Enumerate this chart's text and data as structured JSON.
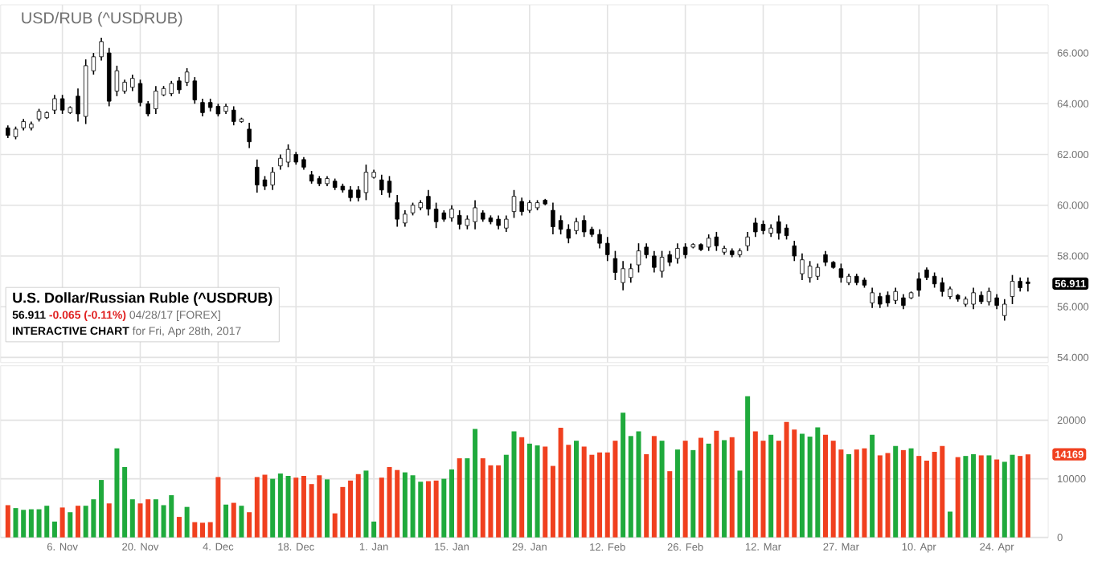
{
  "chart_data": [
    {
      "type": "candlestick",
      "title": "USD/RUB (^USDRUB)",
      "color": "#000000",
      "grid": true,
      "tick_labels": "y",
      "categories": [
        null,
        null,
        null,
        null,
        null,
        null,
        null,
        null,
        null,
        null,
        null,
        null,
        null,
        null,
        null,
        null,
        null,
        null,
        null,
        null,
        null,
        null,
        null,
        null,
        null,
        null,
        null,
        null,
        null,
        null,
        null,
        null,
        null,
        null,
        null,
        null,
        null,
        null,
        null,
        null,
        null,
        null,
        null,
        null,
        null,
        null,
        null,
        null,
        null,
        null,
        null,
        null,
        null,
        null,
        null,
        null,
        null,
        null,
        null,
        null,
        null,
        null,
        null,
        null,
        null,
        null,
        null,
        null,
        null,
        null,
        null,
        null,
        null,
        null,
        null,
        null,
        null,
        null,
        null,
        null,
        null,
        null,
        null,
        null,
        null,
        null,
        null,
        null,
        null,
        null,
        null,
        null,
        null,
        null,
        null,
        null,
        null,
        null,
        null,
        null,
        null,
        null,
        null,
        null,
        null,
        null,
        null,
        null,
        null,
        null,
        null,
        null,
        null,
        null,
        null,
        null,
        null,
        null,
        null,
        null,
        null,
        null,
        null,
        null,
        null,
        null,
        null,
        null,
        null,
        null,
        null,
        null
      ],
      "ylim": [
        53.8,
        67.9
      ],
      "yticks": [
        {
          "value": 54,
          "label": "54.000"
        },
        {
          "value": 56,
          "label": "56.000"
        },
        {
          "value": 58,
          "label": "58.000"
        },
        {
          "value": 60,
          "label": "60.000"
        },
        {
          "value": 62,
          "label": "62.000"
        },
        {
          "value": 64,
          "label": "64.000"
        },
        {
          "value": 66,
          "label": "66.000"
        }
      ],
      "ohlc": [
        [
          63.05,
          63.15,
          62.65,
          62.75
        ],
        [
          62.7,
          63.1,
          62.6,
          63.0
        ],
        [
          63.05,
          63.4,
          62.95,
          63.3
        ],
        [
          63.05,
          63.3,
          62.95,
          63.2
        ],
        [
          63.4,
          63.8,
          63.3,
          63.7
        ],
        [
          63.45,
          63.7,
          63.4,
          63.65
        ],
        [
          63.75,
          64.35,
          63.6,
          64.2
        ],
        [
          64.2,
          64.35,
          63.6,
          63.75
        ],
        [
          63.65,
          63.9,
          63.6,
          63.85
        ],
        [
          64.3,
          64.6,
          63.3,
          63.6
        ],
        [
          63.5,
          65.75,
          63.2,
          65.5
        ],
        [
          65.3,
          66.0,
          65.15,
          65.85
        ],
        [
          65.85,
          66.6,
          65.7,
          66.45
        ],
        [
          66.0,
          66.2,
          63.9,
          64.1
        ],
        [
          64.5,
          65.5,
          64.3,
          65.3
        ],
        [
          64.5,
          64.95,
          64.4,
          64.85
        ],
        [
          64.65,
          65.15,
          64.5,
          65.0
        ],
        [
          64.8,
          64.95,
          63.9,
          64.05
        ],
        [
          64.0,
          64.1,
          63.5,
          63.6
        ],
        [
          63.8,
          64.7,
          63.6,
          64.5
        ],
        [
          64.35,
          64.7,
          64.3,
          64.6
        ],
        [
          64.4,
          64.9,
          64.3,
          64.8
        ],
        [
          64.9,
          65.05,
          64.4,
          64.55
        ],
        [
          64.85,
          65.4,
          64.7,
          65.25
        ],
        [
          64.9,
          65.05,
          64.0,
          64.15
        ],
        [
          64.05,
          64.2,
          63.5,
          63.65
        ],
        [
          64.05,
          64.2,
          63.7,
          63.85
        ],
        [
          63.9,
          64.0,
          63.5,
          63.6
        ],
        [
          63.7,
          64.0,
          63.6,
          63.9
        ],
        [
          63.75,
          63.9,
          63.15,
          63.3
        ],
        [
          63.3,
          63.45,
          63.25,
          63.4
        ],
        [
          63.0,
          63.25,
          62.25,
          62.5
        ],
        [
          61.5,
          61.8,
          60.5,
          60.8
        ],
        [
          61.0,
          61.15,
          60.6,
          60.75
        ],
        [
          60.8,
          61.5,
          60.6,
          61.3
        ],
        [
          61.55,
          62.0,
          61.4,
          61.85
        ],
        [
          61.7,
          62.4,
          61.5,
          62.2
        ],
        [
          62.0,
          62.1,
          61.6,
          61.7
        ],
        [
          61.8,
          61.9,
          61.4,
          61.5
        ],
        [
          61.2,
          61.35,
          60.85,
          60.95
        ],
        [
          61.05,
          61.15,
          60.75,
          60.85
        ],
        [
          60.85,
          61.15,
          60.75,
          61.05
        ],
        [
          60.95,
          61.05,
          60.6,
          60.7
        ],
        [
          60.75,
          60.85,
          60.5,
          60.6
        ],
        [
          60.6,
          60.75,
          60.15,
          60.3
        ],
        [
          60.6,
          60.75,
          60.15,
          60.3
        ],
        [
          60.5,
          61.6,
          60.2,
          61.3
        ],
        [
          61.1,
          61.4,
          61.05,
          61.3
        ],
        [
          61.0,
          61.2,
          60.4,
          60.6
        ],
        [
          60.95,
          61.15,
          60.3,
          60.5
        ],
        [
          60.1,
          60.4,
          59.15,
          59.45
        ],
        [
          59.3,
          59.8,
          59.15,
          59.65
        ],
        [
          59.7,
          60.1,
          59.6,
          60.0
        ],
        [
          59.9,
          60.2,
          59.8,
          60.1
        ],
        [
          60.35,
          60.6,
          59.6,
          59.85
        ],
        [
          59.85,
          60.1,
          59.1,
          59.35
        ],
        [
          59.7,
          59.8,
          59.35,
          59.45
        ],
        [
          59.5,
          60.0,
          59.35,
          59.85
        ],
        [
          59.6,
          59.8,
          59.05,
          59.25
        ],
        [
          59.2,
          59.6,
          59.05,
          59.45
        ],
        [
          59.35,
          60.2,
          59.05,
          59.9
        ],
        [
          59.7,
          59.8,
          59.35,
          59.45
        ],
        [
          59.5,
          59.6,
          59.25,
          59.35
        ],
        [
          59.45,
          59.6,
          59.05,
          59.2
        ],
        [
          59.1,
          59.6,
          58.95,
          59.45
        ],
        [
          59.75,
          60.6,
          59.5,
          60.35
        ],
        [
          60.15,
          60.3,
          59.6,
          59.75
        ],
        [
          59.8,
          60.2,
          59.7,
          60.1
        ],
        [
          59.9,
          60.2,
          59.8,
          60.1
        ],
        [
          60.2,
          60.25,
          60.0,
          60.05
        ],
        [
          59.8,
          60.1,
          58.85,
          59.15
        ],
        [
          59.4,
          59.6,
          58.85,
          59.05
        ],
        [
          59.05,
          59.25,
          58.5,
          58.7
        ],
        [
          59.0,
          59.5,
          58.85,
          59.35
        ],
        [
          59.4,
          59.6,
          58.75,
          58.95
        ],
        [
          59.05,
          59.15,
          58.75,
          58.85
        ],
        [
          58.85,
          59.05,
          58.3,
          58.5
        ],
        [
          58.5,
          58.75,
          57.8,
          58.05
        ],
        [
          57.9,
          58.2,
          57.05,
          57.35
        ],
        [
          56.95,
          57.8,
          56.65,
          57.5
        ],
        [
          57.15,
          57.7,
          56.95,
          57.5
        ],
        [
          57.65,
          58.5,
          57.35,
          58.2
        ],
        [
          58.35,
          58.5,
          57.9,
          58.05
        ],
        [
          58.0,
          58.2,
          57.35,
          57.55
        ],
        [
          57.4,
          58.2,
          57.15,
          57.95
        ],
        [
          58.05,
          58.2,
          57.6,
          57.75
        ],
        [
          57.9,
          58.5,
          57.7,
          58.3
        ],
        [
          58.35,
          58.5,
          57.9,
          58.05
        ],
        [
          58.35,
          58.5,
          58.3,
          58.45
        ],
        [
          58.45,
          58.5,
          58.2,
          58.25
        ],
        [
          58.35,
          58.85,
          58.2,
          58.7
        ],
        [
          58.75,
          58.95,
          58.2,
          58.4
        ],
        [
          58.15,
          58.4,
          58.05,
          58.3
        ],
        [
          58.2,
          58.3,
          57.95,
          58.05
        ],
        [
          58.05,
          58.3,
          57.95,
          58.2
        ],
        [
          58.4,
          58.95,
          58.2,
          58.75
        ],
        [
          59.3,
          59.5,
          58.75,
          58.95
        ],
        [
          59.25,
          59.4,
          58.85,
          59.0
        ],
        [
          58.9,
          59.25,
          58.75,
          59.1
        ],
        [
          59.35,
          59.6,
          58.65,
          58.9
        ],
        [
          59.1,
          59.25,
          58.65,
          58.8
        ],
        [
          58.4,
          58.6,
          57.8,
          58.0
        ],
        [
          57.3,
          58.1,
          57.05,
          57.85
        ],
        [
          57.15,
          57.8,
          56.95,
          57.6
        ],
        [
          57.2,
          57.7,
          57.05,
          57.55
        ],
        [
          58.05,
          58.2,
          57.6,
          57.75
        ],
        [
          57.75,
          57.8,
          57.5,
          57.55
        ],
        [
          57.5,
          57.7,
          56.95,
          57.15
        ],
        [
          56.95,
          57.3,
          56.85,
          57.2
        ],
        [
          57.2,
          57.3,
          56.85,
          56.95
        ],
        [
          57.05,
          57.15,
          56.75,
          56.85
        ],
        [
          56.15,
          56.75,
          55.95,
          56.55
        ],
        [
          56.4,
          56.55,
          55.95,
          56.1
        ],
        [
          56.45,
          56.6,
          56.0,
          56.15
        ],
        [
          56.25,
          56.75,
          56.1,
          56.6
        ],
        [
          56.35,
          56.5,
          55.9,
          56.05
        ],
        [
          56.35,
          56.6,
          56.3,
          56.55
        ],
        [
          57.1,
          57.35,
          56.4,
          56.65
        ],
        [
          57.45,
          57.55,
          57.05,
          57.15
        ],
        [
          57.2,
          57.35,
          56.75,
          56.9
        ],
        [
          56.95,
          57.15,
          56.4,
          56.6
        ],
        [
          56.4,
          56.8,
          56.3,
          56.7
        ],
        [
          56.45,
          56.5,
          56.2,
          56.3
        ],
        [
          56.1,
          56.4,
          56.0,
          56.3
        ],
        [
          56.1,
          56.75,
          55.9,
          56.55
        ],
        [
          56.45,
          56.6,
          56.1,
          56.2
        ],
        [
          56.2,
          56.75,
          56.05,
          56.6
        ],
        [
          56.35,
          56.5,
          55.9,
          56.05
        ],
        [
          55.65,
          56.3,
          55.45,
          56.1
        ],
        [
          56.4,
          57.25,
          56.1,
          57.0
        ],
        [
          57.0,
          57.15,
          56.6,
          56.75
        ],
        [
          56.976,
          57.15,
          56.6,
          56.911
        ]
      ],
      "annotations": [
        "U.S. Dollar/Russian Ruble (^USDRUB)",
        "56.911",
        "-0.065 (-0.11%)",
        "04/28/17 [FOREX]",
        "INTERACTIVE CHART",
        "for Fri, Apr 28th, 2017",
        {
          "text": "56.911",
          "y": 56.911
        }
      ]
    },
    {
      "type": "bar",
      "grid": true,
      "categories": [
        null,
        null,
        null,
        null,
        null,
        null,
        null,
        "6. Nov",
        null,
        null,
        null,
        null,
        null,
        null,
        null,
        null,
        null,
        "20. Nov",
        null,
        null,
        null,
        null,
        null,
        null,
        null,
        null,
        null,
        "4. Dec",
        null,
        null,
        null,
        null,
        null,
        null,
        null,
        null,
        null,
        "18. Dec",
        null,
        null,
        null,
        null,
        null,
        null,
        null,
        null,
        null,
        "1. Jan",
        null,
        null,
        null,
        null,
        null,
        null,
        null,
        null,
        null,
        "15. Jan",
        null,
        null,
        null,
        null,
        null,
        null,
        null,
        null,
        null,
        "29. Jan",
        null,
        null,
        null,
        null,
        null,
        null,
        null,
        null,
        null,
        "12. Feb",
        null,
        null,
        null,
        null,
        null,
        null,
        null,
        null,
        null,
        "26. Feb",
        null,
        null,
        null,
        null,
        null,
        null,
        null,
        null,
        null,
        "12. Mar",
        null,
        null,
        null,
        null,
        null,
        null,
        null,
        null,
        null,
        "27. Mar",
        null,
        null,
        null,
        null,
        null,
        null,
        null,
        null,
        null,
        "10. Apr",
        null,
        null,
        null,
        null,
        null,
        null,
        null,
        null,
        null,
        "24. Apr",
        null,
        null,
        null,
        null
      ],
      "ylim": [
        0,
        29300
      ],
      "yticks": [
        0,
        10000,
        20000
      ],
      "values": [
        5500,
        5000,
        4700,
        4800,
        4800,
        5400,
        2700,
        5100,
        4300,
        5400,
        5400,
        6500,
        9800,
        5800,
        15200,
        12000,
        6500,
        5800,
        6500,
        6500,
        5500,
        7200,
        3500,
        5200,
        2600,
        2500,
        2600,
        10300,
        5600,
        5900,
        5400,
        4300,
        10300,
        10700,
        10000,
        10900,
        10500,
        10200,
        10500,
        9100,
        10600,
        9900,
        4100,
        8600,
        9700,
        10800,
        11400,
        2700,
        10200,
        12000,
        11500,
        11100,
        10600,
        9500,
        9600,
        9700,
        10000,
        11600,
        13500,
        13500,
        18500,
        13500,
        12300,
        12300,
        14100,
        18100,
        17100,
        16000,
        15700,
        15500,
        12200,
        18700,
        15800,
        16500,
        15500,
        14100,
        14500,
        14500,
        16500,
        21300,
        17300,
        18100,
        14200,
        17300,
        16500,
        11300,
        15000,
        16500,
        14900,
        17000,
        16000,
        18200,
        16600,
        17100,
        11400,
        24100,
        18100,
        16500,
        17500,
        16500,
        19700,
        18400,
        17700,
        17200,
        18800,
        17500,
        16500,
        15000,
        14200,
        15000,
        15200,
        17500,
        14000,
        14400,
        15600,
        14900,
        15200,
        13900,
        13100,
        14600,
        15600,
        4400,
        13700,
        13900,
        14200,
        14000,
        14000,
        13300,
        12900,
        14100,
        13900,
        14169
      ],
      "colors": [
        "#f0401f",
        "#1faa3c",
        "#1faa3c",
        "#1faa3c",
        "#1faa3c",
        "#1faa3c",
        "#1faa3c",
        "#f0401f",
        "#1faa3c",
        "#f0401f",
        "#1faa3c",
        "#1faa3c",
        "#1faa3c",
        "#f0401f",
        "#1faa3c",
        "#1faa3c",
        "#1faa3c",
        "#f0401f",
        "#f0401f",
        "#1faa3c",
        "#1faa3c",
        "#1faa3c",
        "#f0401f",
        "#1faa3c",
        "#f0401f",
        "#f0401f",
        "#f0401f",
        "#f0401f",
        "#1faa3c",
        "#f0401f",
        "#1faa3c",
        "#f0401f",
        "#f0401f",
        "#f0401f",
        "#1faa3c",
        "#1faa3c",
        "#1faa3c",
        "#f0401f",
        "#f0401f",
        "#f0401f",
        "#f0401f",
        "#1faa3c",
        "#f0401f",
        "#f0401f",
        "#f0401f",
        "#f0401f",
        "#1faa3c",
        "#1faa3c",
        "#f0401f",
        "#f0401f",
        "#f0401f",
        "#1faa3c",
        "#1faa3c",
        "#1faa3c",
        "#f0401f",
        "#f0401f",
        "#1faa3c",
        "#1faa3c",
        "#f0401f",
        "#1faa3c",
        "#1faa3c",
        "#f0401f",
        "#f0401f",
        "#f0401f",
        "#1faa3c",
        "#1faa3c",
        "#f0401f",
        "#1faa3c",
        "#1faa3c",
        "#f0401f",
        "#f0401f",
        "#f0401f",
        "#f0401f",
        "#1faa3c",
        "#f0401f",
        "#f0401f",
        "#f0401f",
        "#f0401f",
        "#f0401f",
        "#1faa3c",
        "#1faa3c",
        "#1faa3c",
        "#f0401f",
        "#f0401f",
        "#1faa3c",
        "#f0401f",
        "#1faa3c",
        "#f0401f",
        "#1faa3c",
        "#f0401f",
        "#1faa3c",
        "#f0401f",
        "#1faa3c",
        "#f0401f",
        "#1faa3c",
        "#1faa3c",
        "#f0401f",
        "#f0401f",
        "#1faa3c",
        "#f0401f",
        "#f0401f",
        "#f0401f",
        "#1faa3c",
        "#1faa3c",
        "#1faa3c",
        "#f0401f",
        "#f0401f",
        "#f0401f",
        "#1faa3c",
        "#f0401f",
        "#f0401f",
        "#1faa3c",
        "#f0401f",
        "#f0401f",
        "#1faa3c",
        "#f0401f",
        "#1faa3c",
        "#f0401f",
        "#f0401f",
        "#f0401f",
        "#f0401f",
        "#1faa3c",
        "#f0401f",
        "#1faa3c",
        "#1faa3c",
        "#f0401f",
        "#1faa3c",
        "#f0401f",
        "#1faa3c",
        "#1faa3c",
        "#f0401f",
        "#f0401f"
      ],
      "annotations": [
        {
          "text": "14169",
          "y": 14169
        }
      ]
    }
  ]
}
